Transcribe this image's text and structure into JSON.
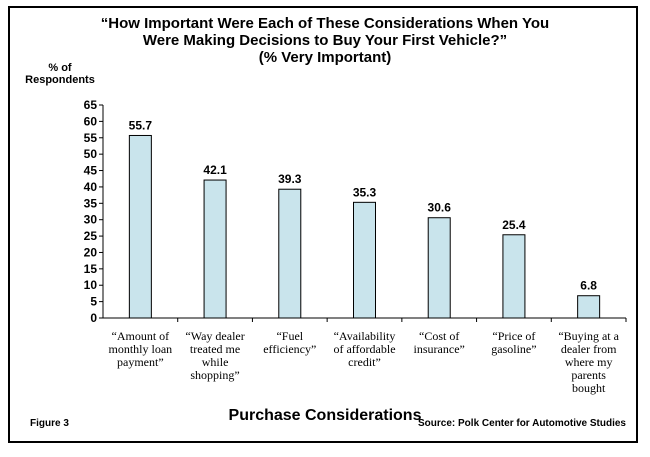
{
  "chart_data": {
    "type": "bar",
    "title_lines": [
      "“How Important Were Each of These Considerations When You",
      "Were Making Decisions to Buy Your First Vehicle?”",
      "(% Very Important)"
    ],
    "ylabel_lines": [
      "% of",
      "Respondents"
    ],
    "xlabel": "Purchase Considerations",
    "ylim": [
      0,
      65
    ],
    "yticks": [
      0,
      5,
      10,
      15,
      20,
      25,
      30,
      35,
      40,
      45,
      50,
      55,
      60,
      65
    ],
    "grid": false,
    "bar_color": "#c9e4ec",
    "categories": [
      [
        "“Amount of",
        "monthly loan",
        "payment”"
      ],
      [
        "“Way dealer",
        "treated me",
        "while",
        "shopping”"
      ],
      [
        "“Fuel",
        "efficiency”"
      ],
      [
        "“Availability",
        "of affordable",
        "credit”"
      ],
      [
        "“Cost of",
        "insurance”"
      ],
      [
        "“Price of",
        "gasoline”"
      ],
      [
        "“Buying at a",
        "dealer from",
        "where my",
        "parents",
        "bought"
      ]
    ],
    "values": [
      55.7,
      42.1,
      39.3,
      35.3,
      30.6,
      25.4,
      6.8
    ],
    "value_labels": [
      "55.7",
      "42.1",
      "39.3",
      "35.3",
      "30.6",
      "25.4",
      "6.8"
    ]
  },
  "figure_label": "Figure 3",
  "source": "Source:  Polk Center for Automotive Studies"
}
